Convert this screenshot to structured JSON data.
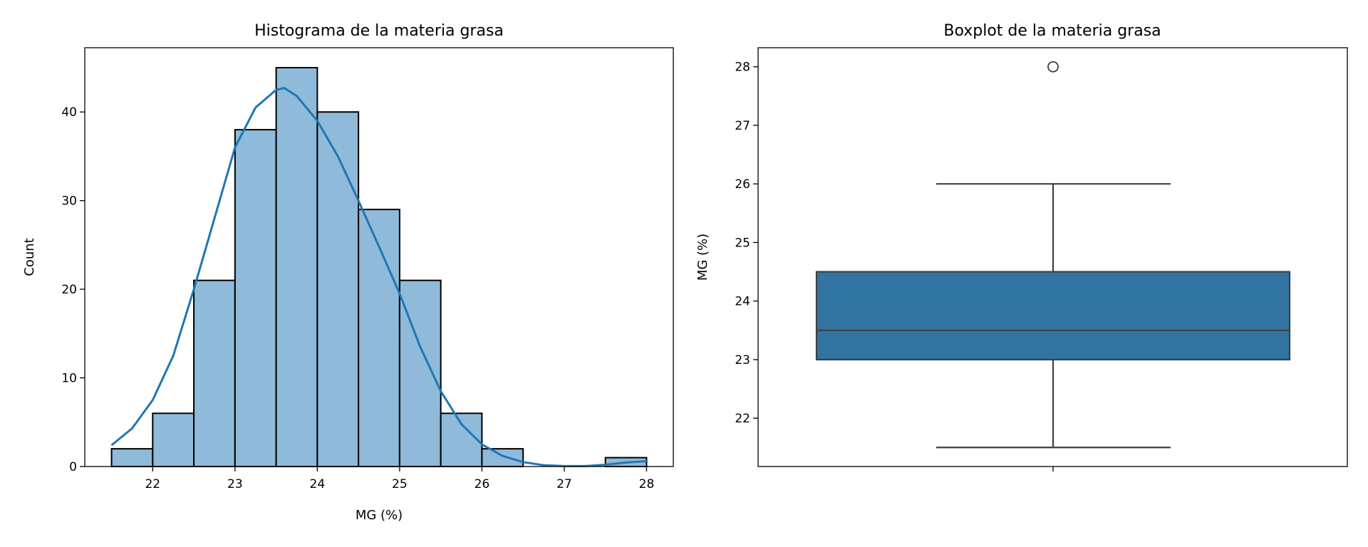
{
  "chart_data": [
    {
      "type": "bar",
      "title": "Histograma de la materia grasa",
      "xlabel": "MG (%)",
      "ylabel": "Count",
      "xlim": [
        21.175,
        28.325
      ],
      "ylim": [
        0,
        47.25
      ],
      "xticks": [
        22,
        23,
        24,
        25,
        26,
        27,
        28
      ],
      "yticks": [
        0,
        10,
        20,
        30,
        40
      ],
      "bin_width": 0.5,
      "bin_starts": [
        21.5,
        22.0,
        22.5,
        23.0,
        23.5,
        24.0,
        24.5,
        25.0,
        25.5,
        26.0,
        26.5,
        27.0,
        27.5
      ],
      "values": [
        2,
        6,
        21,
        38,
        45,
        40,
        29,
        21,
        6,
        2,
        0,
        0,
        1
      ],
      "bar_color": "#8fbad9",
      "kde": {
        "color": "#1f77b4",
        "x": [
          21.5,
          21.75,
          22,
          22.25,
          22.5,
          22.75,
          23,
          23.25,
          23.5,
          23.6,
          23.75,
          24,
          24.25,
          24.5,
          24.75,
          25,
          25.25,
          25.5,
          25.75,
          26,
          26.25,
          26.5,
          26.75,
          27,
          27.25,
          27.5,
          27.75,
          28
        ],
        "y": [
          2.4,
          4.3,
          7.5,
          12.5,
          20,
          28,
          36,
          40.5,
          42.5,
          42.7,
          41.8,
          39,
          35,
          30,
          24.8,
          19.5,
          13.5,
          8.5,
          4.8,
          2.5,
          1.2,
          0.5,
          0.15,
          0.05,
          0.05,
          0.2,
          0.45,
          0.6
        ]
      }
    },
    {
      "type": "box",
      "title": "Boxplot de la materia grasa",
      "ylabel": "MG (%)",
      "ylim": [
        21.175,
        28.325
      ],
      "yticks": [
        22,
        23,
        24,
        25,
        26,
        27,
        28
      ],
      "whisker_low": 21.5,
      "q1": 23.0,
      "median": 23.5,
      "q3": 24.5,
      "whisker_high": 26.0,
      "outliers": [
        28.0
      ],
      "box_color": "#3274a1",
      "line_color": "#3f3f3f"
    }
  ]
}
